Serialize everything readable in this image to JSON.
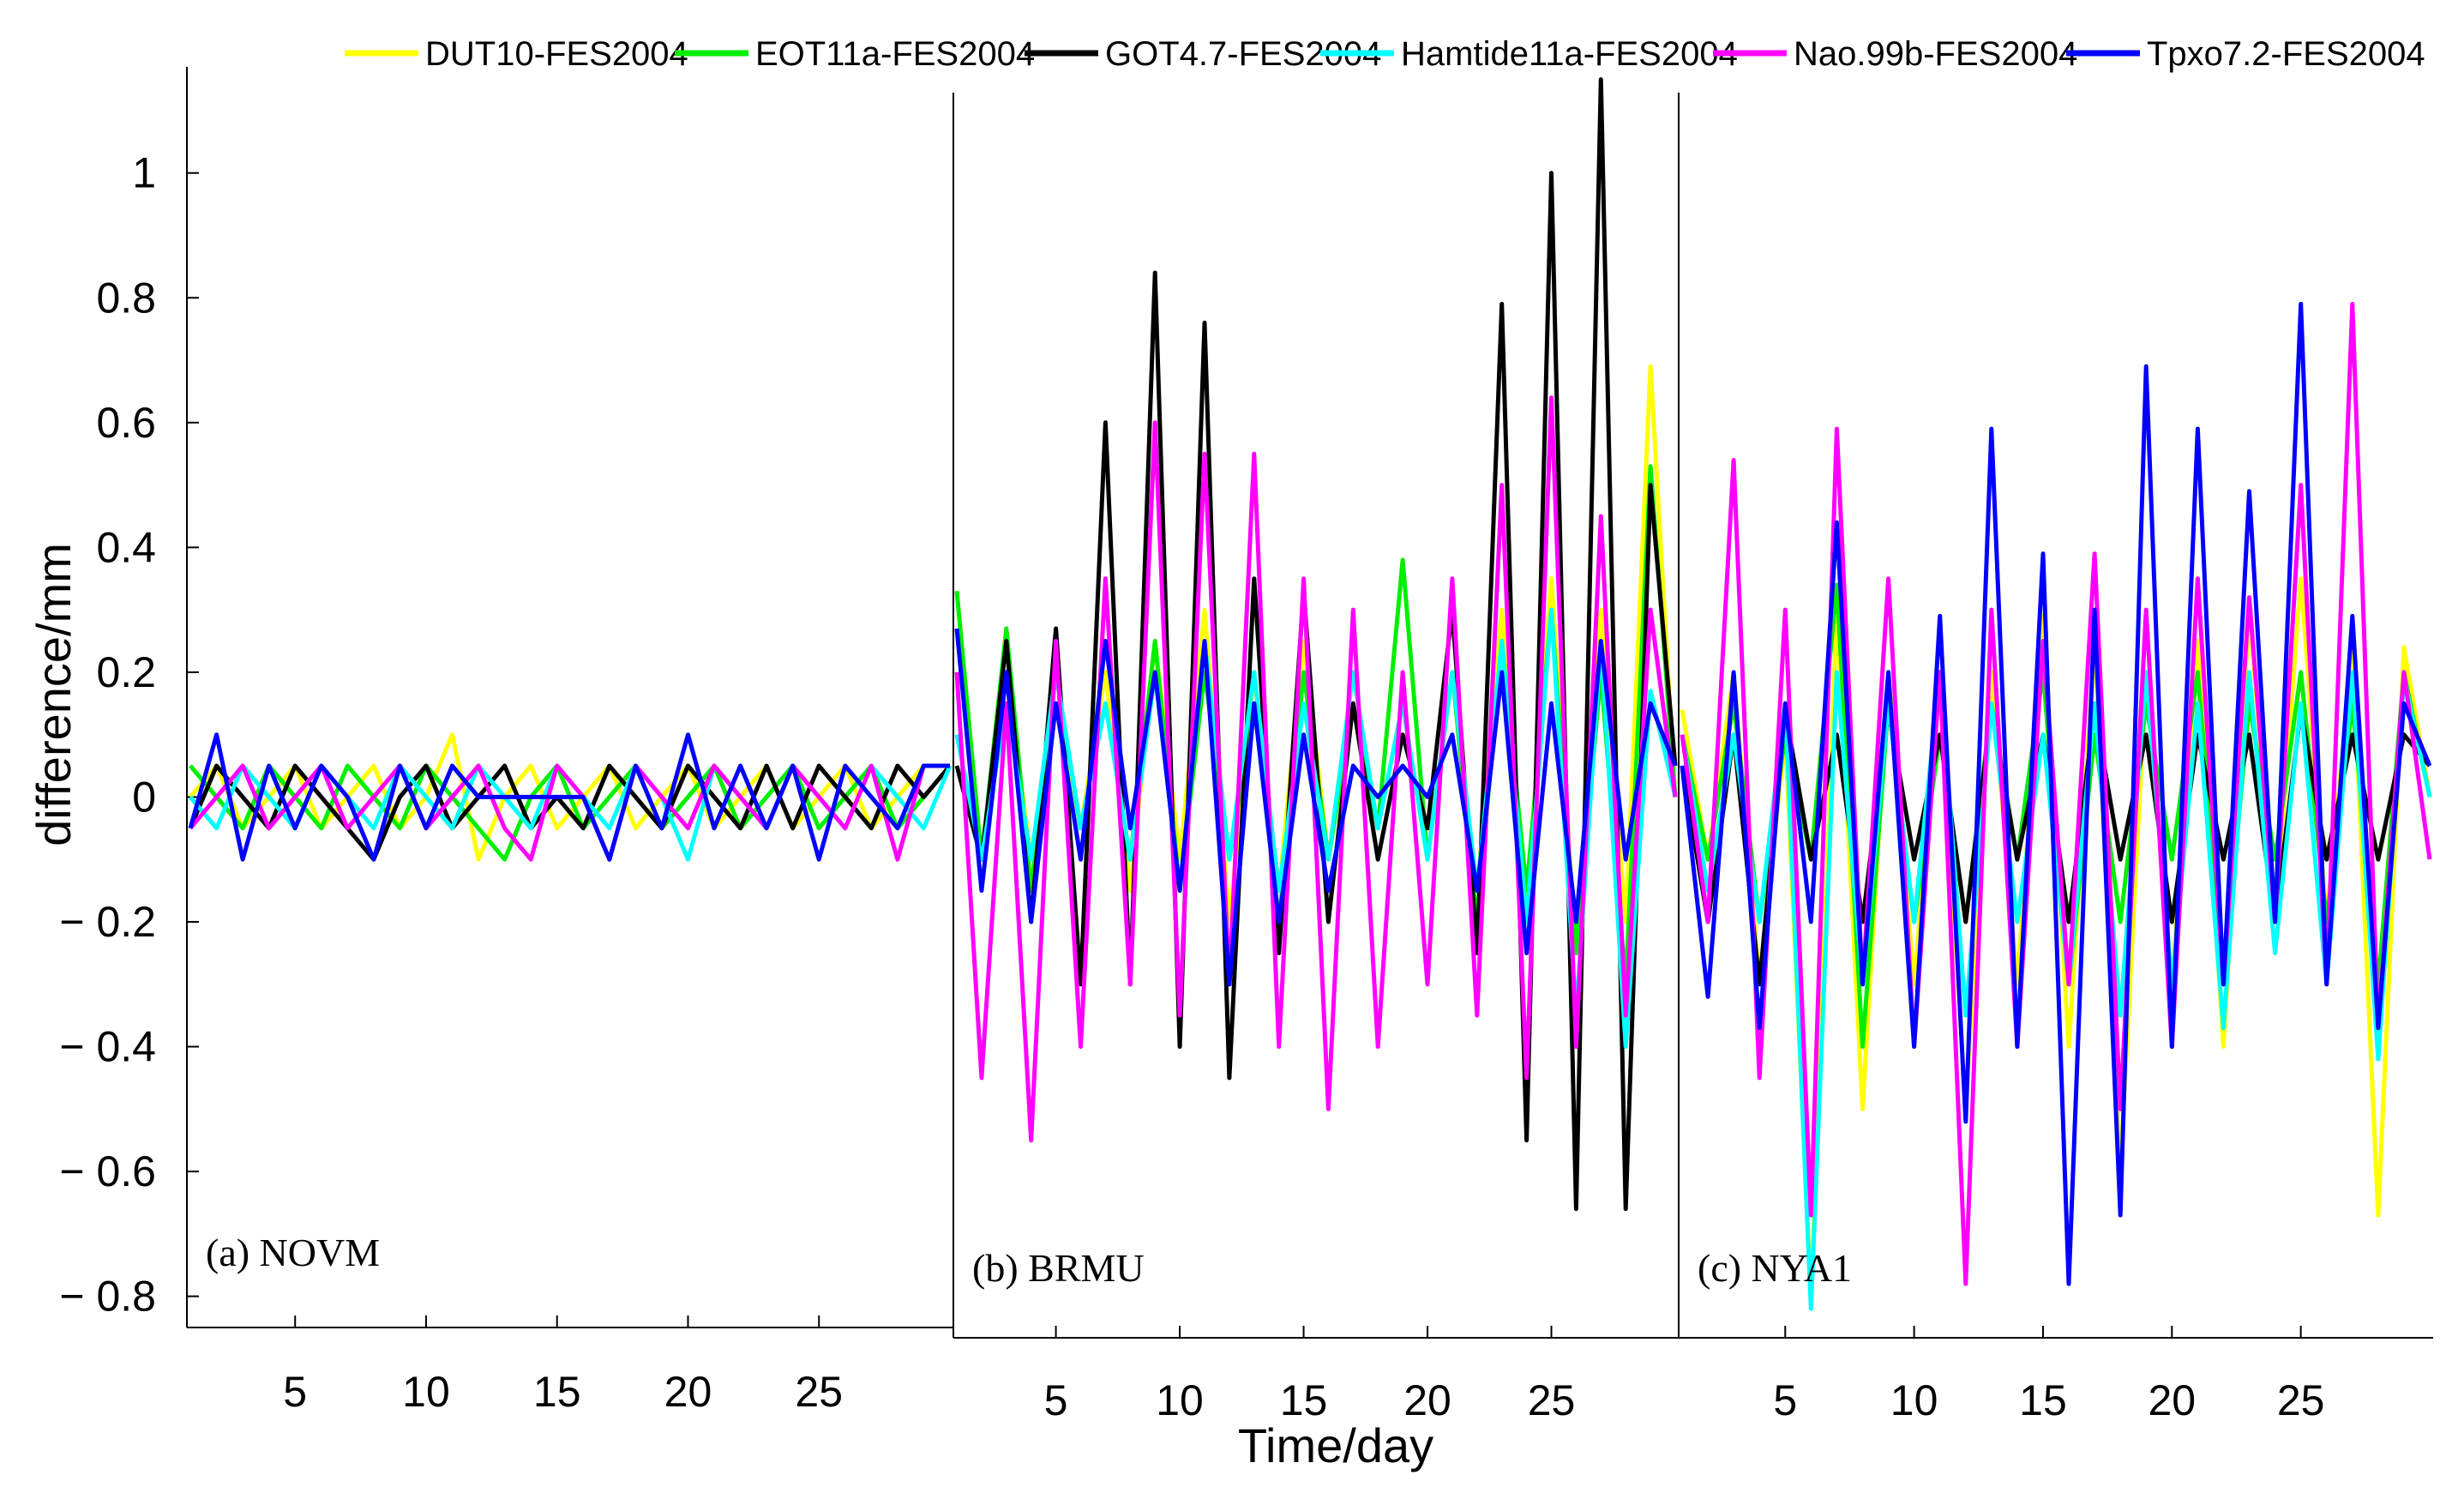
{
  "chart_data": {
    "type": "line",
    "ylabel": "difference/mm",
    "xlabel": "Time/day",
    "ylim": [
      -0.85,
      1.17
    ],
    "yticks": [
      -0.8,
      -0.6,
      -0.4,
      -0.2,
      0,
      0.2,
      0.4,
      0.6,
      0.8,
      1
    ],
    "ytick_labels": [
      "− 0.8",
      "− 0.6",
      "− 0.4",
      "− 0.2",
      "0",
      "0.2",
      "0.4",
      "0.6",
      "0.8",
      "1"
    ],
    "xticks": [
      5,
      10,
      15,
      20,
      25
    ],
    "xtick_labels": [
      "5",
      "10",
      "15",
      "20",
      "25"
    ],
    "xlim": [
      1,
      30
    ],
    "legend_position": "top",
    "series_legend": [
      {
        "name": "DUT10-FES2004",
        "color": "#ffff00"
      },
      {
        "name": "EOT11a-FES2004",
        "color": "#00ee00"
      },
      {
        "name": "GOT4.7-FES2004",
        "color": "#000000"
      },
      {
        "name": "Hamtide11a-FES2004",
        "color": "#00ffff"
      },
      {
        "name": "Nao.99b-FES2004",
        "color": "#ff00ff"
      },
      {
        "name": "Tpxo7.2-FES2004",
        "color": "#0000ff"
      }
    ],
    "panels": [
      {
        "label": "(a)  NOVM",
        "x": [
          1,
          2,
          3,
          4,
          5,
          6,
          7,
          8,
          9,
          10,
          11,
          12,
          13,
          14,
          15,
          16,
          17,
          18,
          19,
          20,
          21,
          22,
          23,
          24,
          25,
          26,
          27,
          28,
          29,
          30
        ],
        "series": [
          {
            "values": [
              0,
              0.05,
              -0.05,
              0,
              0.05,
              -0.05,
              0,
              0.05,
              -0.05,
              0,
              0.1,
              -0.1,
              0,
              0.05,
              -0.05,
              0,
              0.05,
              -0.05,
              0,
              0.05,
              -0.05,
              0,
              0.05,
              -0.05,
              0,
              0.05,
              -0.05,
              0,
              0.05,
              0.05
            ]
          },
          {
            "values": [
              0.05,
              0,
              -0.05,
              0.05,
              0,
              -0.05,
              0.05,
              0,
              -0.05,
              0.05,
              0,
              -0.05,
              -0.1,
              0,
              0.05,
              -0.05,
              0,
              0.05,
              -0.05,
              0,
              0.05,
              -0.05,
              0,
              0.05,
              -0.05,
              0,
              0.05,
              -0.05,
              0,
              0.05
            ]
          },
          {
            "values": [
              -0.05,
              0.05,
              0,
              -0.05,
              0.05,
              0,
              -0.05,
              -0.1,
              0,
              0.05,
              -0.05,
              0,
              0.05,
              -0.05,
              0,
              -0.05,
              0.05,
              0,
              -0.05,
              0.05,
              0,
              -0.05,
              0.05,
              -0.05,
              0.05,
              0,
              -0.05,
              0.05,
              0,
              0.05
            ]
          },
          {
            "values": [
              0,
              -0.05,
              0.05,
              0,
              -0.05,
              0.05,
              0,
              -0.05,
              0.05,
              0,
              -0.05,
              0.05,
              0,
              -0.05,
              0.05,
              0,
              -0.05,
              0.05,
              0,
              -0.1,
              0.05,
              0,
              -0.05,
              0.05,
              0,
              -0.05,
              0.05,
              0,
              -0.05,
              0.05
            ]
          },
          {
            "values": [
              -0.05,
              0,
              0.05,
              -0.05,
              0,
              0.05,
              -0.05,
              0,
              0.05,
              -0.05,
              0,
              0.05,
              -0.05,
              -0.1,
              0.05,
              0,
              -0.1,
              0.05,
              0,
              -0.05,
              0.05,
              0,
              -0.05,
              0.05,
              0,
              -0.05,
              0.05,
              -0.1,
              0.05,
              0.05
            ]
          },
          {
            "values": [
              -0.05,
              0.1,
              -0.1,
              0.05,
              -0.05,
              0.05,
              0,
              -0.1,
              0.05,
              -0.05,
              0.05,
              0,
              0,
              0,
              0,
              0,
              -0.1,
              0.05,
              -0.05,
              0.1,
              -0.05,
              0.05,
              -0.05,
              0.05,
              -0.1,
              0.05,
              0,
              -0.05,
              0.05,
              0.05
            ]
          }
        ]
      },
      {
        "label": "(b)  BRMU",
        "x": [
          1,
          2,
          3,
          4,
          5,
          6,
          7,
          8,
          9,
          10,
          11,
          12,
          13,
          14,
          15,
          16,
          17,
          18,
          19,
          20,
          21,
          22,
          23,
          24,
          25,
          26,
          27,
          28,
          29,
          30
        ],
        "series": [
          {
            "values": [
              0.33,
              -0.1,
              0.2,
              -0.1,
              0.15,
              -0.05,
              0.2,
              -0.15,
              0.25,
              -0.1,
              0.3,
              -0.2,
              0.2,
              -0.15,
              0.25,
              -0.1,
              0.2,
              -0.05,
              0.15,
              -0.1,
              0.2,
              -0.15,
              0.3,
              -0.2,
              0.35,
              -0.25,
              0.3,
              -0.2,
              0.69,
              0
            ]
          },
          {
            "values": [
              0.33,
              -0.1,
              0.27,
              -0.15,
              0.2,
              -0.05,
              0.15,
              -0.1,
              0.25,
              -0.15,
              0.2,
              -0.1,
              0.15,
              -0.2,
              0.2,
              -0.1,
              0.15,
              -0.05,
              0.38,
              -0.1,
              0.2,
              -0.2,
              0.25,
              -0.15,
              0.3,
              -0.25,
              0.2,
              -0.3,
              0.53,
              0
            ]
          },
          {
            "values": [
              0.05,
              -0.1,
              0.25,
              -0.2,
              0.27,
              -0.3,
              0.6,
              -0.3,
              0.84,
              -0.4,
              0.76,
              -0.45,
              0.35,
              -0.25,
              0.33,
              -0.2,
              0.15,
              -0.1,
              0.1,
              -0.05,
              0.3,
              -0.25,
              0.79,
              -0.55,
              1,
              -0.66,
              1.15,
              -0.66,
              0.5,
              0.05
            ]
          },
          {
            "values": [
              0.1,
              -0.1,
              0.15,
              -0.1,
              0.2,
              -0.05,
              0.15,
              -0.1,
              0.2,
              -0.15,
              0.25,
              -0.1,
              0.2,
              -0.15,
              0.15,
              -0.1,
              0.2,
              -0.05,
              0.15,
              -0.1,
              0.2,
              -0.15,
              0.25,
              -0.2,
              0.3,
              -0.35,
              0.25,
              -0.4,
              0.17,
              0
            ]
          },
          {
            "values": [
              0.2,
              -0.45,
              0.15,
              -0.55,
              0.25,
              -0.4,
              0.35,
              -0.3,
              0.6,
              -0.35,
              0.55,
              -0.3,
              0.55,
              -0.4,
              0.35,
              -0.5,
              0.3,
              -0.4,
              0.2,
              -0.3,
              0.35,
              -0.35,
              0.5,
              -0.45,
              0.64,
              -0.4,
              0.45,
              -0.35,
              0.3,
              0
            ]
          },
          {
            "values": [
              0.27,
              -0.15,
              0.2,
              -0.2,
              0.15,
              -0.1,
              0.25,
              -0.05,
              0.2,
              -0.15,
              0.25,
              -0.3,
              0.15,
              -0.2,
              0.1,
              -0.15,
              0.05,
              0,
              0.05,
              0,
              0.1,
              -0.15,
              0.2,
              -0.25,
              0.15,
              -0.2,
              0.25,
              -0.1,
              0.15,
              0.05
            ]
          }
        ]
      },
      {
        "label": "(c)  NYA1",
        "x": [
          1,
          2,
          3,
          4,
          5,
          6,
          7,
          8,
          9,
          10,
          11,
          12,
          13,
          14,
          15,
          16,
          17,
          18,
          19,
          20,
          21,
          22,
          23,
          24,
          25,
          26,
          27,
          28,
          29,
          30
        ],
        "series": [
          {
            "values": [
              0.14,
              -0.1,
              0.2,
              -0.3,
              0.1,
              -0.8,
              0.3,
              -0.5,
              0.2,
              -0.3,
              0.19,
              -0.5,
              0.2,
              -0.3,
              0.29,
              -0.4,
              0.25,
              -0.6,
              0.2,
              -0.3,
              0.25,
              -0.4,
              0.3,
              -0.2,
              0.35,
              -0.2,
              0.24,
              -0.67,
              0.24,
              0
            ]
          },
          {
            "values": [
              0.1,
              -0.1,
              0.15,
              -0.2,
              0.1,
              -0.1,
              0.34,
              -0.4,
              0.15,
              -0.2,
              0.1,
              -0.2,
              0.15,
              -0.1,
              0.2,
              -0.3,
              0.1,
              -0.2,
              0.15,
              -0.1,
              0.2,
              -0.3,
              0.15,
              -0.1,
              0.2,
              -0.2,
              0.15,
              -0.3,
              0.2,
              0
            ]
          },
          {
            "values": [
              0.05,
              -0.2,
              0.1,
              -0.3,
              0.14,
              -0.1,
              0.1,
              -0.2,
              0.14,
              -0.1,
              0.1,
              -0.2,
              0.14,
              -0.1,
              0.1,
              -0.2,
              0.14,
              -0.1,
              0.1,
              -0.2,
              0.1,
              -0.1,
              0.1,
              -0.2,
              0.14,
              -0.1,
              0.1,
              -0.1,
              0.1,
              0.05
            ]
          },
          {
            "values": [
              0.1,
              -0.15,
              0.1,
              -0.2,
              0.15,
              -0.82,
              0.2,
              -0.3,
              0.15,
              -0.2,
              0.2,
              -0.35,
              0.15,
              -0.2,
              0.1,
              -0.3,
              0.15,
              -0.35,
              0.2,
              -0.3,
              0.15,
              -0.37,
              0.2,
              -0.25,
              0.15,
              -0.3,
              0.2,
              -0.42,
              0.19,
              0
            ]
          },
          {
            "values": [
              0.1,
              -0.2,
              0.54,
              -0.45,
              0.3,
              -0.67,
              0.59,
              -0.3,
              0.35,
              -0.4,
              0.2,
              -0.78,
              0.3,
              -0.4,
              0.25,
              -0.3,
              0.39,
              -0.5,
              0.3,
              -0.4,
              0.35,
              -0.3,
              0.32,
              -0.2,
              0.5,
              -0.3,
              0.79,
              -0.37,
              0.2,
              -0.1
            ]
          },
          {
            "values": [
              0.05,
              -0.32,
              0.2,
              -0.37,
              0.15,
              -0.2,
              0.44,
              -0.3,
              0.2,
              -0.4,
              0.29,
              -0.52,
              0.59,
              -0.4,
              0.39,
              -0.78,
              0.3,
              -0.67,
              0.69,
              -0.4,
              0.59,
              -0.3,
              0.49,
              -0.2,
              0.79,
              -0.3,
              0.29,
              -0.37,
              0.15,
              0.05
            ]
          }
        ]
      }
    ]
  }
}
